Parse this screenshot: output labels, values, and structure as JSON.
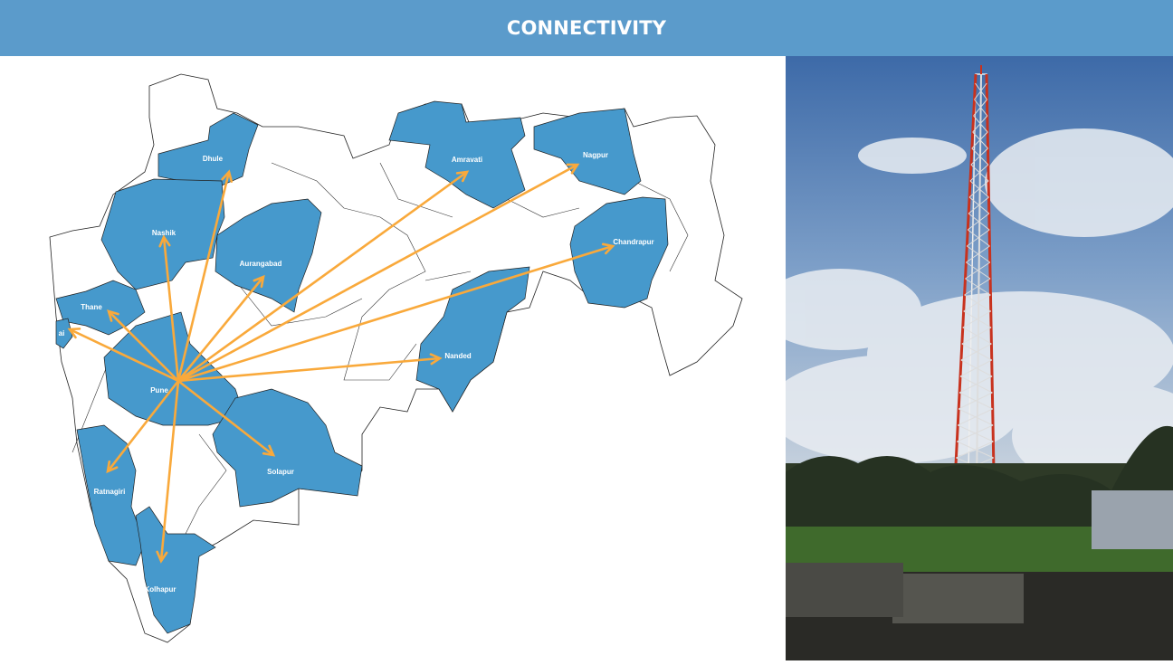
{
  "header": {
    "title": "CONNECTIVITY"
  },
  "map": {
    "hub": "Pune",
    "districts": [
      {
        "name": "Dhule"
      },
      {
        "name": "Nashik"
      },
      {
        "name": "Aurangabad"
      },
      {
        "name": "Amravati"
      },
      {
        "name": "Nagpur"
      },
      {
        "name": "Chandrapur"
      },
      {
        "name": "Thane"
      },
      {
        "name": "ai"
      },
      {
        "name": "Pune"
      },
      {
        "name": "Nanded"
      },
      {
        "name": "Solapur"
      },
      {
        "name": "Ratnagiri"
      },
      {
        "name": "Kolhapur"
      }
    ],
    "colors": {
      "highlight": "#4699cc",
      "arrow": "#f9a93b",
      "outline": "#222222"
    }
  },
  "photo": {
    "subject": "telecom-tower"
  }
}
